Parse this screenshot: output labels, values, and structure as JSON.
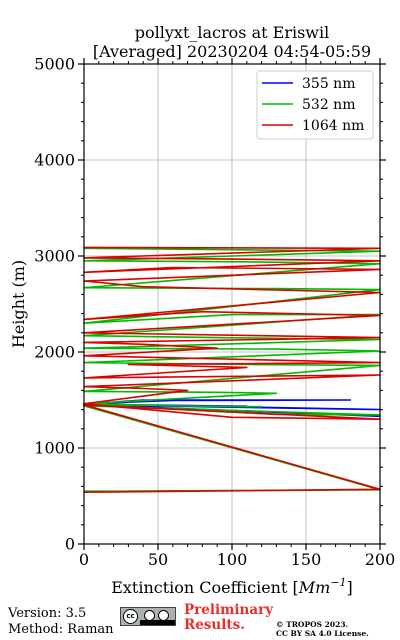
{
  "chart_data": {
    "type": "line",
    "title_line1": "pollyxt_lacros at Eriswil",
    "title_line2": "[Averaged] 20230204 04:54-05:59",
    "xlabel": "Extinction Coefficient [$Mm^{-1}$]",
    "xlabel_main": "Extinction Coefficient [",
    "xlabel_unit": "Mm",
    "xlabel_exp": "−1",
    "xlabel_close": "]",
    "ylabel": "Height (m)",
    "xlim": [
      0,
      200
    ],
    "ylim": [
      0,
      5000
    ],
    "xticks": [
      0,
      50,
      100,
      150,
      200
    ],
    "yticks": [
      0,
      1000,
      2000,
      3000,
      4000,
      5000
    ],
    "grid": true,
    "legend_position": "top-right",
    "series": [
      {
        "name": "355 nm",
        "color": "#0000ff",
        "points": [
          [
            0,
            1440
          ],
          [
            110,
            1435
          ],
          [
            0,
            1455
          ],
          [
            40,
            1500
          ],
          [
            180,
            1500
          ],
          [
            60,
            1495
          ],
          [
            0,
            1460
          ],
          [
            200,
            1400
          ],
          [
            0,
            1450
          ],
          [
            200,
            1330
          ]
        ]
      },
      {
        "name": "532 nm",
        "color": "#00bb00",
        "points": [
          [
            0,
            550
          ],
          [
            200,
            565
          ],
          [
            0,
            1440
          ],
          [
            200,
            1345
          ],
          [
            130,
            1350
          ],
          [
            0,
            1450
          ],
          [
            120,
            1430
          ],
          [
            60,
            1440
          ],
          [
            0,
            1460
          ],
          [
            130,
            1570
          ],
          [
            90,
            1580
          ],
          [
            0,
            1590
          ],
          [
            200,
            1860
          ],
          [
            110,
            1870
          ],
          [
            0,
            1890
          ],
          [
            200,
            2010
          ],
          [
            130,
            2030
          ],
          [
            0,
            2040
          ],
          [
            200,
            2130
          ],
          [
            90,
            2150
          ],
          [
            0,
            2170
          ],
          [
            200,
            2390
          ],
          [
            100,
            2390
          ],
          [
            0,
            2300
          ],
          [
            200,
            2650
          ],
          [
            130,
            2660
          ],
          [
            0,
            2670
          ],
          [
            200,
            2920
          ],
          [
            110,
            2940
          ],
          [
            0,
            2950
          ],
          [
            200,
            3050
          ],
          [
            0,
            3080
          ]
        ]
      },
      {
        "name": "1064 nm",
        "color": "#dd0000",
        "points": [
          [
            0,
            540
          ],
          [
            200,
            570
          ],
          [
            0,
            1450
          ],
          [
            200,
            1300
          ],
          [
            100,
            1320
          ],
          [
            0,
            1460
          ],
          [
            70,
            1600
          ],
          [
            40,
            1620
          ],
          [
            0,
            1640
          ],
          [
            200,
            1760
          ],
          [
            0,
            1730
          ],
          [
            110,
            1840
          ],
          [
            30,
            1870
          ],
          [
            200,
            1890
          ],
          [
            0,
            1960
          ],
          [
            90,
            2040
          ],
          [
            40,
            2080
          ],
          [
            0,
            2100
          ],
          [
            200,
            2150
          ],
          [
            0,
            2200
          ],
          [
            200,
            2380
          ],
          [
            80,
            2420
          ],
          [
            0,
            2340
          ],
          [
            200,
            2620
          ],
          [
            40,
            2680
          ],
          [
            0,
            2740
          ],
          [
            200,
            2860
          ],
          [
            60,
            2880
          ],
          [
            0,
            2830
          ],
          [
            200,
            2950
          ],
          [
            90,
            2970
          ],
          [
            0,
            2980
          ],
          [
            200,
            3080
          ],
          [
            0,
            3090
          ]
        ]
      }
    ]
  },
  "footer": {
    "version": "Version: 3.5",
    "method": "Method: Raman",
    "preliminary_line1": "Preliminary",
    "preliminary_line2": "Results.",
    "copyright_line1": "© TROPOS 2023.",
    "copyright_line2": "CC BY SA 4.0 License.",
    "license_badge": "cc"
  }
}
